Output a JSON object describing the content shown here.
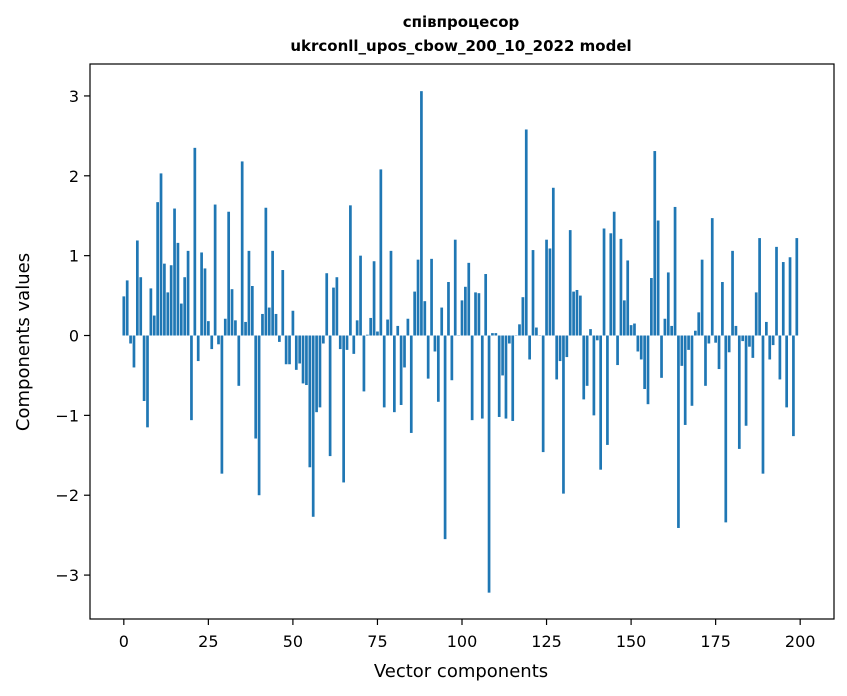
{
  "chart_data": {
    "type": "bar",
    "title_line1": "співпроцесор",
    "title_line2": "ukrconll_upos_cbow_200_10_2022 model",
    "xlabel": "Vector components",
    "ylabel": "Components values",
    "xlim": [
      -10,
      210
    ],
    "ylim": [
      -3.55,
      3.4
    ],
    "xticks": [
      0,
      25,
      50,
      75,
      100,
      125,
      150,
      175,
      200
    ],
    "yticks": [
      -3,
      -2,
      -1,
      0,
      1,
      2,
      3
    ],
    "ytick_labels": [
      "−3",
      "−2",
      "−1",
      "0",
      "1",
      "2",
      "3"
    ],
    "grid": false,
    "bar_color": "#1f77b4",
    "values": [
      0.49,
      0.69,
      -0.1,
      -0.4,
      1.19,
      0.73,
      -0.82,
      -1.15,
      0.59,
      0.25,
      1.67,
      2.03,
      0.9,
      0.54,
      0.88,
      1.59,
      1.16,
      0.4,
      0.73,
      1.06,
      -1.06,
      2.35,
      -0.32,
      1.04,
      0.84,
      0.18,
      -0.17,
      1.64,
      -0.11,
      -1.73,
      0.21,
      1.55,
      0.58,
      0.19,
      -0.63,
      2.18,
      0.17,
      1.06,
      0.62,
      -1.29,
      -2.0,
      0.27,
      1.6,
      0.35,
      1.06,
      0.27,
      -0.08,
      0.82,
      -0.36,
      -0.36,
      0.31,
      -0.43,
      -0.35,
      -0.6,
      -0.62,
      -1.65,
      -2.27,
      -0.96,
      -0.9,
      -0.1,
      0.78,
      -1.51,
      0.6,
      0.73,
      -0.17,
      -1.84,
      -0.18,
      1.63,
      -0.23,
      0.19,
      1.0,
      -0.7,
      0.01,
      0.22,
      0.93,
      0.05,
      2.08,
      -0.9,
      0.2,
      1.06,
      -0.96,
      0.12,
      -0.87,
      -0.4,
      0.21,
      -1.22,
      0.55,
      0.95,
      3.06,
      0.43,
      -0.54,
      0.96,
      -0.2,
      -0.83,
      0.35,
      -2.55,
      0.67,
      -0.56,
      1.2,
      0.0,
      0.44,
      0.61,
      0.91,
      -1.06,
      0.54,
      0.53,
      -1.04,
      0.77,
      -3.22,
      0.03,
      0.03,
      -1.02,
      -0.5,
      -1.04,
      -0.1,
      -1.07,
      0.0,
      0.14,
      0.48,
      2.58,
      -0.3,
      1.07,
      0.1,
      0.0,
      -1.46,
      1.2,
      1.09,
      1.85,
      -0.55,
      -0.32,
      -1.98,
      -0.27,
      1.32,
      0.55,
      0.57,
      0.5,
      -0.8,
      -0.63,
      0.08,
      -1.0,
      -0.06,
      -1.68,
      1.34,
      -1.37,
      1.28,
      1.55,
      -0.37,
      1.21,
      0.44,
      0.94,
      0.13,
      0.15,
      -0.2,
      -0.3,
      -0.67,
      -0.86,
      0.72,
      2.31,
      1.44,
      -0.53,
      0.21,
      0.79,
      0.12,
      1.61,
      -2.41,
      -0.38,
      -1.12,
      -0.18,
      -0.88,
      0.06,
      0.29,
      0.95,
      -0.63,
      -0.1,
      1.47,
      -0.09,
      -0.42,
      0.67,
      -2.34,
      -0.21,
      1.06,
      0.12,
      -1.42,
      -0.07,
      -1.13,
      -0.14,
      -0.28,
      0.54,
      1.22,
      -1.73,
      0.17,
      -0.3,
      -0.12,
      1.11,
      -0.55,
      0.92,
      -0.9,
      0.98,
      -1.26,
      1.22
    ]
  }
}
